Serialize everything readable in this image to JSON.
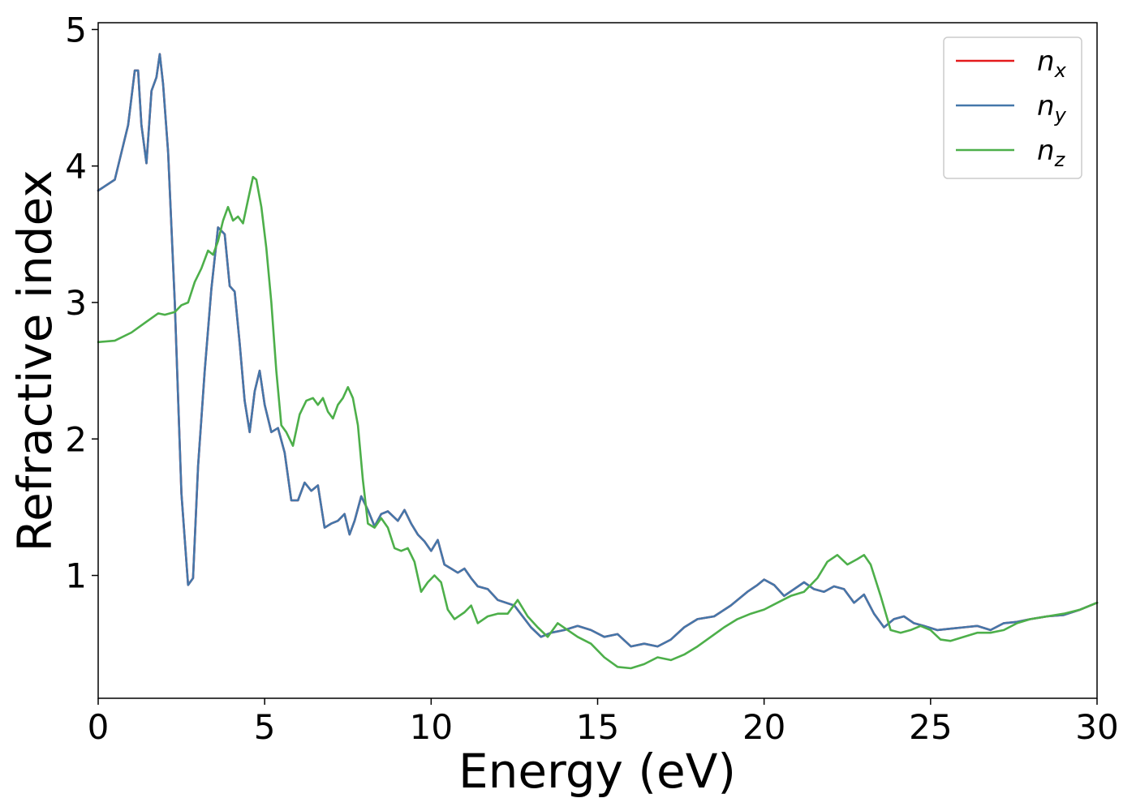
{
  "chart_data": {
    "type": "line",
    "xlabel": "Energy (eV)",
    "ylabel": "Refractive index",
    "xlim": [
      0,
      30
    ],
    "ylim": [
      0.1,
      5.05
    ],
    "xticks": [
      0,
      5,
      10,
      15,
      20,
      25,
      30
    ],
    "yticks": [
      1,
      2,
      3,
      4,
      5
    ],
    "grid": false,
    "legend": "top-right",
    "series": [
      {
        "name": "n_x",
        "label_base": "n",
        "label_sub": "x",
        "color": "#e41a1c",
        "x": [
          0,
          0.5,
          0.9,
          1.1,
          1.2,
          1.3,
          1.45,
          1.6,
          1.75,
          1.85,
          1.95,
          2.1,
          2.3,
          2.5,
          2.7,
          2.85,
          3.0,
          3.2,
          3.4,
          3.6,
          3.8,
          3.95,
          4.1,
          4.25,
          4.4,
          4.55,
          4.7,
          4.85,
          5.0,
          5.2,
          5.4,
          5.6,
          5.8,
          6.0,
          6.2,
          6.4,
          6.6,
          6.8,
          7.0,
          7.2,
          7.4,
          7.55,
          7.7,
          7.9,
          8.1,
          8.3,
          8.5,
          8.7,
          9.0,
          9.2,
          9.4,
          9.6,
          9.8,
          10.0,
          10.2,
          10.4,
          10.6,
          10.8,
          11.0,
          11.2,
          11.4,
          11.7,
          12.0,
          12.5,
          13.0,
          13.3,
          13.6,
          14.0,
          14.4,
          14.8,
          15.2,
          15.6,
          16.0,
          16.4,
          16.8,
          17.2,
          17.6,
          18.0,
          18.5,
          19.0,
          19.5,
          19.8,
          20.0,
          20.3,
          20.6,
          20.9,
          21.2,
          21.5,
          21.8,
          22.1,
          22.4,
          22.7,
          23.0,
          23.3,
          23.6,
          23.9,
          24.2,
          24.5,
          24.8,
          25.2,
          25.6,
          26.0,
          26.4,
          26.8,
          27.2,
          27.6,
          28.0,
          28.5,
          29.0,
          29.5,
          30.0
        ],
        "y": [
          3.82,
          3.9,
          4.3,
          4.7,
          4.7,
          4.3,
          4.02,
          4.55,
          4.65,
          4.82,
          4.6,
          4.1,
          3.0,
          1.6,
          0.93,
          0.98,
          1.8,
          2.5,
          3.1,
          3.55,
          3.5,
          3.12,
          3.08,
          2.7,
          2.28,
          2.05,
          2.35,
          2.5,
          2.25,
          2.05,
          2.08,
          1.9,
          1.55,
          1.55,
          1.68,
          1.62,
          1.66,
          1.35,
          1.38,
          1.4,
          1.45,
          1.3,
          1.4,
          1.58,
          1.48,
          1.36,
          1.45,
          1.47,
          1.4,
          1.48,
          1.38,
          1.3,
          1.25,
          1.18,
          1.26,
          1.08,
          1.05,
          1.02,
          1.05,
          0.98,
          0.92,
          0.9,
          0.82,
          0.78,
          0.62,
          0.55,
          0.58,
          0.6,
          0.63,
          0.6,
          0.55,
          0.57,
          0.48,
          0.5,
          0.48,
          0.53,
          0.62,
          0.68,
          0.7,
          0.78,
          0.88,
          0.93,
          0.97,
          0.93,
          0.85,
          0.9,
          0.95,
          0.9,
          0.88,
          0.92,
          0.9,
          0.8,
          0.86,
          0.72,
          0.62,
          0.68,
          0.7,
          0.65,
          0.63,
          0.6,
          0.61,
          0.62,
          0.63,
          0.6,
          0.65,
          0.66,
          0.68,
          0.7,
          0.71,
          0.75,
          0.8
        ]
      },
      {
        "name": "n_y",
        "label_base": "n",
        "label_sub": "y",
        "color": "#4477aa",
        "x": [
          0,
          0.5,
          0.9,
          1.1,
          1.2,
          1.3,
          1.45,
          1.6,
          1.75,
          1.85,
          1.95,
          2.1,
          2.3,
          2.5,
          2.7,
          2.85,
          3.0,
          3.2,
          3.4,
          3.6,
          3.8,
          3.95,
          4.1,
          4.25,
          4.4,
          4.55,
          4.7,
          4.85,
          5.0,
          5.2,
          5.4,
          5.6,
          5.8,
          6.0,
          6.2,
          6.4,
          6.6,
          6.8,
          7.0,
          7.2,
          7.4,
          7.55,
          7.7,
          7.9,
          8.1,
          8.3,
          8.5,
          8.7,
          9.0,
          9.2,
          9.4,
          9.6,
          9.8,
          10.0,
          10.2,
          10.4,
          10.6,
          10.8,
          11.0,
          11.2,
          11.4,
          11.7,
          12.0,
          12.5,
          13.0,
          13.3,
          13.6,
          14.0,
          14.4,
          14.8,
          15.2,
          15.6,
          16.0,
          16.4,
          16.8,
          17.2,
          17.6,
          18.0,
          18.5,
          19.0,
          19.5,
          19.8,
          20.0,
          20.3,
          20.6,
          20.9,
          21.2,
          21.5,
          21.8,
          22.1,
          22.4,
          22.7,
          23.0,
          23.3,
          23.6,
          23.9,
          24.2,
          24.5,
          24.8,
          25.2,
          25.6,
          26.0,
          26.4,
          26.8,
          27.2,
          27.6,
          28.0,
          28.5,
          29.0,
          29.5,
          30.0
        ],
        "y": [
          3.82,
          3.9,
          4.3,
          4.7,
          4.7,
          4.3,
          4.02,
          4.55,
          4.65,
          4.82,
          4.6,
          4.1,
          3.0,
          1.6,
          0.93,
          0.98,
          1.8,
          2.5,
          3.1,
          3.55,
          3.5,
          3.12,
          3.08,
          2.7,
          2.28,
          2.05,
          2.35,
          2.5,
          2.25,
          2.05,
          2.08,
          1.9,
          1.55,
          1.55,
          1.68,
          1.62,
          1.66,
          1.35,
          1.38,
          1.4,
          1.45,
          1.3,
          1.4,
          1.58,
          1.48,
          1.36,
          1.45,
          1.47,
          1.4,
          1.48,
          1.38,
          1.3,
          1.25,
          1.18,
          1.26,
          1.08,
          1.05,
          1.02,
          1.05,
          0.98,
          0.92,
          0.9,
          0.82,
          0.78,
          0.62,
          0.55,
          0.58,
          0.6,
          0.63,
          0.6,
          0.55,
          0.57,
          0.48,
          0.5,
          0.48,
          0.53,
          0.62,
          0.68,
          0.7,
          0.78,
          0.88,
          0.93,
          0.97,
          0.93,
          0.85,
          0.9,
          0.95,
          0.9,
          0.88,
          0.92,
          0.9,
          0.8,
          0.86,
          0.72,
          0.62,
          0.68,
          0.7,
          0.65,
          0.63,
          0.6,
          0.61,
          0.62,
          0.63,
          0.6,
          0.65,
          0.66,
          0.68,
          0.7,
          0.71,
          0.75,
          0.8
        ]
      },
      {
        "name": "n_z",
        "label_base": "n",
        "label_sub": "z",
        "color": "#4daf4a",
        "x": [
          0,
          0.5,
          1.0,
          1.4,
          1.8,
          2.0,
          2.3,
          2.5,
          2.7,
          2.9,
          3.1,
          3.3,
          3.45,
          3.6,
          3.75,
          3.9,
          4.05,
          4.2,
          4.35,
          4.5,
          4.65,
          4.75,
          4.9,
          5.05,
          5.2,
          5.35,
          5.5,
          5.65,
          5.85,
          6.05,
          6.25,
          6.45,
          6.6,
          6.75,
          6.9,
          7.05,
          7.2,
          7.35,
          7.5,
          7.65,
          7.8,
          7.95,
          8.1,
          8.3,
          8.5,
          8.7,
          8.9,
          9.1,
          9.3,
          9.5,
          9.7,
          9.9,
          10.1,
          10.3,
          10.5,
          10.7,
          11.0,
          11.2,
          11.4,
          11.7,
          12.0,
          12.3,
          12.6,
          12.9,
          13.2,
          13.5,
          13.8,
          14.1,
          14.4,
          14.8,
          15.2,
          15.6,
          16.0,
          16.4,
          16.8,
          17.2,
          17.6,
          18.0,
          18.4,
          18.8,
          19.2,
          19.6,
          20.0,
          20.4,
          20.8,
          21.2,
          21.6,
          21.9,
          22.2,
          22.5,
          22.8,
          23.0,
          23.2,
          23.5,
          23.8,
          24.1,
          24.4,
          24.7,
          25.0,
          25.3,
          25.6,
          26.0,
          26.4,
          26.8,
          27.2,
          27.6,
          28.0,
          28.5,
          29.0,
          29.5,
          30.0
        ],
        "y": [
          2.71,
          2.72,
          2.78,
          2.85,
          2.92,
          2.91,
          2.93,
          2.98,
          3.0,
          3.15,
          3.25,
          3.38,
          3.35,
          3.45,
          3.6,
          3.7,
          3.6,
          3.63,
          3.58,
          3.75,
          3.92,
          3.9,
          3.7,
          3.4,
          3.0,
          2.5,
          2.1,
          2.05,
          1.95,
          2.18,
          2.28,
          2.3,
          2.25,
          2.3,
          2.2,
          2.15,
          2.25,
          2.3,
          2.38,
          2.3,
          2.1,
          1.7,
          1.38,
          1.35,
          1.42,
          1.35,
          1.2,
          1.18,
          1.2,
          1.1,
          0.88,
          0.95,
          1.0,
          0.95,
          0.75,
          0.68,
          0.73,
          0.78,
          0.65,
          0.7,
          0.72,
          0.72,
          0.82,
          0.7,
          0.62,
          0.55,
          0.65,
          0.6,
          0.55,
          0.5,
          0.4,
          0.33,
          0.32,
          0.35,
          0.4,
          0.38,
          0.42,
          0.48,
          0.55,
          0.62,
          0.68,
          0.72,
          0.75,
          0.8,
          0.85,
          0.88,
          0.98,
          1.1,
          1.15,
          1.08,
          1.12,
          1.15,
          1.08,
          0.85,
          0.6,
          0.58,
          0.6,
          0.63,
          0.6,
          0.53,
          0.52,
          0.55,
          0.58,
          0.58,
          0.6,
          0.65,
          0.68,
          0.7,
          0.72,
          0.75,
          0.8
        ]
      }
    ]
  }
}
